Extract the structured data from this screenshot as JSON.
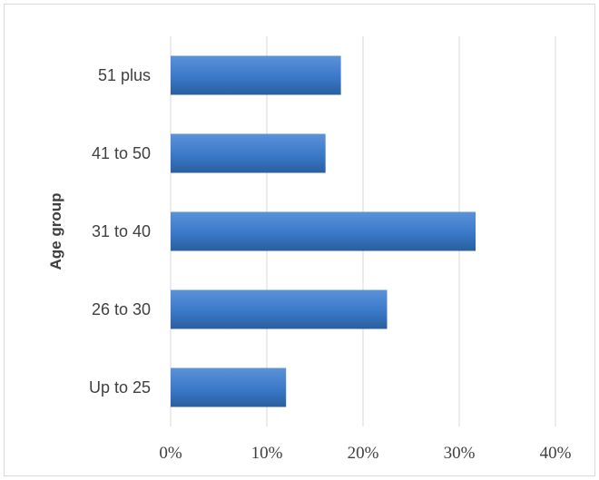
{
  "chart_data": {
    "type": "bar",
    "orientation": "horizontal",
    "categories": [
      "Up to 25",
      "26 to 30",
      "31 to 40",
      "41 to 50",
      "51 plus"
    ],
    "values": [
      12,
      22.5,
      31.7,
      16.1,
      17.7
    ],
    "xlabel": "",
    "ylabel": "Age group",
    "xlim": [
      0,
      40
    ],
    "x_ticks": [
      0,
      10,
      20,
      30,
      40
    ],
    "x_tick_labels": [
      "0%",
      "10%",
      "20%",
      "30%",
      "40%"
    ],
    "grid": "vertical",
    "legend": "none",
    "bar_color": "#3a78c9",
    "bar_color_light": "#5b93d8",
    "bar_color_dark": "#2a5f9e"
  }
}
